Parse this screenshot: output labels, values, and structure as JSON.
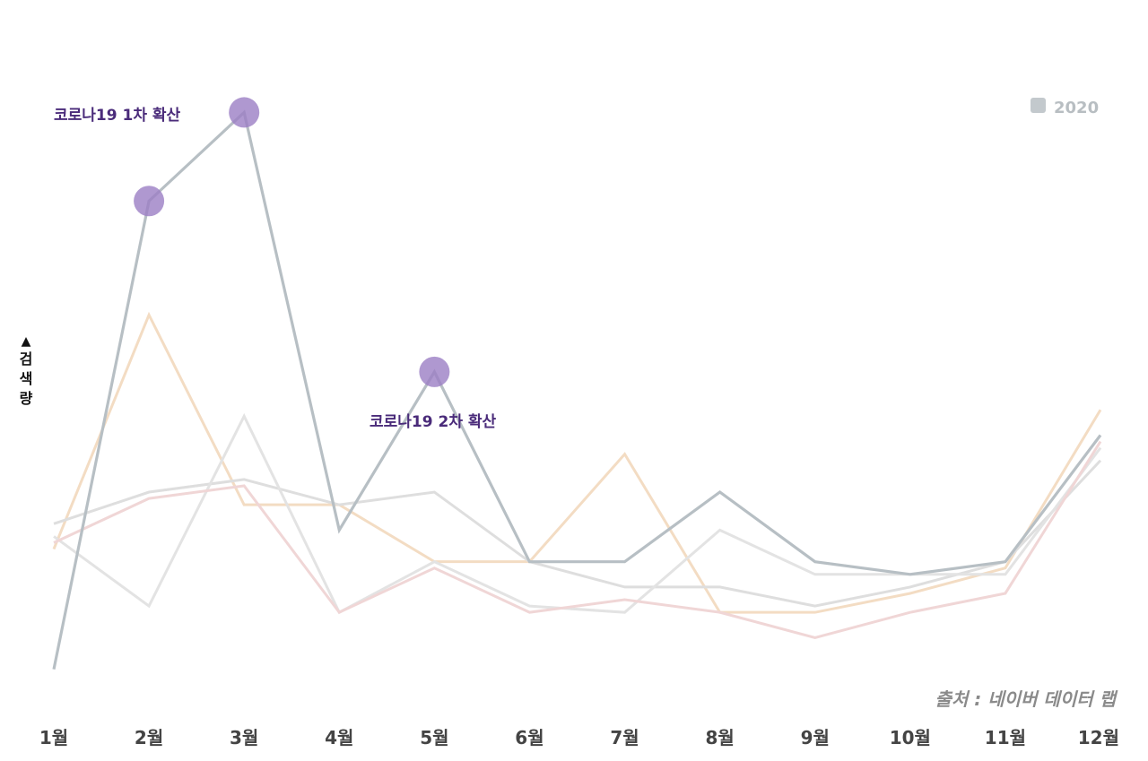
{
  "chart_data": {
    "type": "line",
    "title": "",
    "xlabel": "",
    "ylabel": "검색량",
    "y_axis_arrow": "▲",
    "categories": [
      "1월",
      "2월",
      "3월",
      "4월",
      "5월",
      "6월",
      "7월",
      "8월",
      "9월",
      "10월",
      "11월",
      "12월"
    ],
    "ylim": [
      0,
      100
    ],
    "series": [
      {
        "name": "2020",
        "color": "#b7bfc4",
        "highlight": true,
        "values": [
          5,
          79,
          93,
          27,
          52,
          22,
          22,
          33,
          22,
          20,
          22,
          42
        ]
      },
      {
        "name": "series-orange",
        "color": "#f3dcc3",
        "highlight": false,
        "values": [
          24,
          61,
          31,
          31,
          22,
          22,
          39,
          14,
          14,
          17,
          21,
          46
        ]
      },
      {
        "name": "series-gray-a",
        "color": "#dedede",
        "highlight": false,
        "values": [
          28,
          33,
          35,
          31,
          33,
          22,
          18,
          18,
          15,
          18,
          22,
          38
        ]
      },
      {
        "name": "series-gray-b",
        "color": "#e3e3e3",
        "highlight": false,
        "values": [
          26,
          15,
          45,
          14,
          22,
          15,
          14,
          27,
          20,
          20,
          20,
          40
        ]
      },
      {
        "name": "series-pink",
        "color": "#f0d6d6",
        "highlight": false,
        "values": [
          25,
          32,
          34,
          14,
          21,
          14,
          16,
          14,
          10,
          14,
          17,
          41
        ]
      }
    ],
    "markers": [
      {
        "series": "2020",
        "index": 1
      },
      {
        "series": "2020",
        "index": 2
      },
      {
        "series": "2020",
        "index": 4
      }
    ],
    "marker_color": "#9b7ec4",
    "annotations": [
      {
        "text": "코로나19 1차 확산",
        "near_index": 2
      },
      {
        "text": "코로나19 2차 확산",
        "near_index": 4
      }
    ],
    "annotation_color": "#4a2b7a",
    "legend": {
      "position": "top-right",
      "entries": [
        {
          "label": "2020",
          "color": "#c3c9cd"
        }
      ]
    },
    "source": "출처 : 네이버 데이터 랩"
  }
}
